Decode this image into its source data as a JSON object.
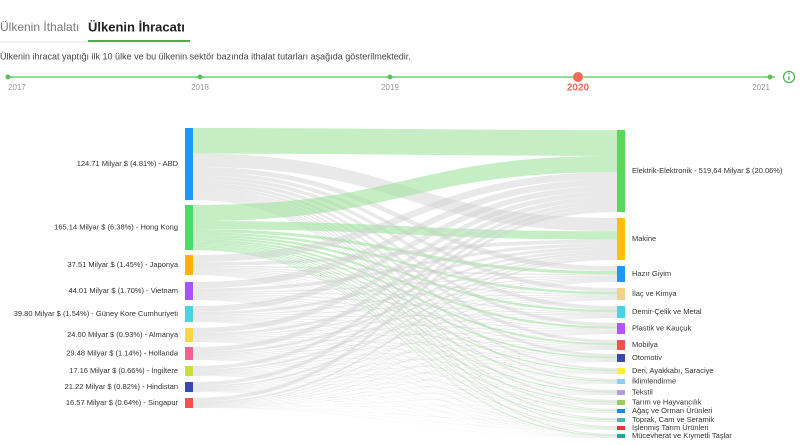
{
  "tabs": [
    "Ülkenin İthalatı",
    "Ülkenin İhracatı"
  ],
  "active_tab": 1,
  "description": "Ülkenin ihracat yaptığı ilk 10 ülke ve bu ülkenin sektör bazında ithalat tutarları aşağıda gösterilmektedir.",
  "timeline": {
    "years": [
      "2017",
      "2018",
      "2019",
      "2020",
      "2021"
    ],
    "selected": 3
  },
  "sankey": {
    "sources": [
      {
        "label": "124.71 Milyar $ (4.81%) - ABD",
        "color": "#2196f3"
      },
      {
        "label": "165.14 Milyar $ (6.38%) - Hong Kong",
        "color": "#4cd964"
      },
      {
        "label": "37.51 Milyar $ (1.45%) - Japonya",
        "color": "#ffb300"
      },
      {
        "label": "44.01 Milyar $ (1.70%) - Vietnam",
        "color": "#a855f7"
      },
      {
        "label": "39.80 Milyar $ (1.54%) - Güney Kore Cumhuriyeti",
        "color": "#4dd0e1"
      },
      {
        "label": "24.00 Milyar $ (0.93%) - Almanya",
        "color": "#ffd54f"
      },
      {
        "label": "29.48 Milyar $ (1.14%) - Hollanda",
        "color": "#f06292"
      },
      {
        "label": "17.16 Milyar $ (0.66%) - İngiltere",
        "color": "#cddc39"
      },
      {
        "label": "21.22 Milyar $ (0.82%) - Hindistan",
        "color": "#3949ab"
      },
      {
        "label": "16.57 Milyar $ (0.64%) - Singapur",
        "color": "#ef5350"
      }
    ],
    "targets": [
      {
        "label": "Elektrik-Elektronik - 519,64 Milyar $ (20.06%)",
        "color": "#5cd65c"
      },
      {
        "label": "Makine",
        "color": "#ffc107"
      },
      {
        "label": "Hazır Giyim",
        "color": "#2196f3"
      },
      {
        "label": "İlaç ve Kimya",
        "color": "#f2d38a"
      },
      {
        "label": "Demir-Çelik ve Metal",
        "color": "#4dd0e1"
      },
      {
        "label": "Plastik ve Kauçuk",
        "color": "#b455f5"
      },
      {
        "label": "Mobilya",
        "color": "#ef5350"
      },
      {
        "label": "Otomotiv",
        "color": "#3949ab"
      },
      {
        "label": "Deri, Ayakkabı, Saraciye",
        "color": "#ffeb3b"
      },
      {
        "label": "İklimlendirme",
        "color": "#90caf9"
      },
      {
        "label": "Tekstil",
        "color": "#b39ddb"
      },
      {
        "label": "Tarım ve Hayvancılık",
        "color": "#9ccc65"
      },
      {
        "label": "Ağaç ve Orman Ürünleri",
        "color": "#1e88e5"
      },
      {
        "label": "Toprak, Cam ve Seramik",
        "color": "#4db6ac"
      },
      {
        "label": "İşlenmiş Tarım Ürünleri",
        "color": "#e53935"
      },
      {
        "label": "Mücevherat ve Kıymetli Taşlar",
        "color": "#26a69a"
      }
    ]
  }
}
